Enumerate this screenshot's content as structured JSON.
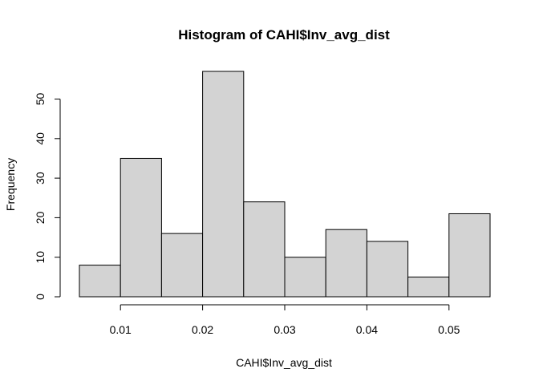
{
  "colors": {
    "bar_fill": "#d3d3d3",
    "bar_stroke": "#000000",
    "axis": "#000000",
    "background": "#ffffff"
  },
  "chart_data": {
    "type": "bar",
    "title": "Histogram of CAHI$Inv_avg_dist",
    "xlabel": "CAHI$Inv_avg_dist",
    "ylabel": "Frequency",
    "bin_edges": [
      0.005,
      0.01,
      0.015,
      0.02,
      0.025,
      0.03,
      0.035,
      0.04,
      0.045,
      0.05,
      0.055
    ],
    "values": [
      8,
      35,
      16,
      57,
      24,
      10,
      17,
      14,
      5,
      21
    ],
    "xlim": [
      0.005,
      0.055
    ],
    "ylim": [
      0,
      57
    ],
    "x_ticks": [
      0.01,
      0.02,
      0.03,
      0.04,
      0.05
    ],
    "x_tick_labels": [
      "0.01",
      "0.02",
      "0.03",
      "0.04",
      "0.05"
    ],
    "y_ticks": [
      0,
      10,
      20,
      30,
      40,
      50
    ],
    "y_tick_labels": [
      "0",
      "10",
      "20",
      "30",
      "40",
      "50"
    ],
    "grid": false,
    "legend": "none"
  }
}
